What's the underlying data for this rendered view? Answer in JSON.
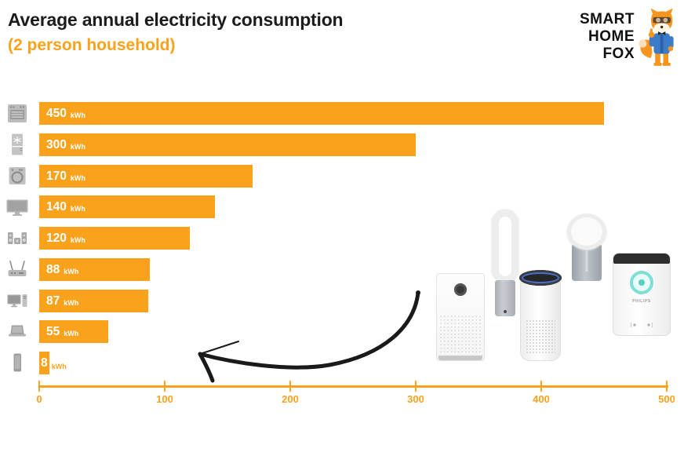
{
  "header": {
    "title": "Average annual electricity consumption",
    "subtitle": "(2 person household)"
  },
  "logo": {
    "line1": "SMART",
    "line2": "HOME",
    "line3": "FOX"
  },
  "colors": {
    "accent_orange": "#FAA21C",
    "title_black": "#1c1c1c",
    "bar_label_white": "#FFFFFF",
    "appliance_icon_gray": "#A8A8A8"
  },
  "chart_data": {
    "type": "bar",
    "orientation": "horizontal",
    "title": "Average annual electricity consumption (2 person household)",
    "unit": "kWh",
    "categories": [
      "oven",
      "fridge-freezer",
      "washing-machine",
      "television",
      "stereo-system",
      "wifi-router",
      "desktop-computer",
      "laptop",
      "smartphone"
    ],
    "values": [
      450,
      300,
      170,
      140,
      120,
      88,
      87,
      55,
      8
    ],
    "value_labels": [
      "450",
      "300",
      "170",
      "140",
      "120",
      "88",
      "87",
      "55",
      "8"
    ],
    "xlim": [
      0,
      500
    ],
    "x_ticks": [
      "0",
      "100",
      "200",
      "300",
      "400",
      "500"
    ],
    "grid": false,
    "legend": false,
    "bar_color": "#FAA21C",
    "value_label_position": "inside-left"
  },
  "products": {
    "items": [
      {
        "name": "xiaomi-box-air-purifier"
      },
      {
        "name": "dyson-tower-air-purifier"
      },
      {
        "name": "levoit-cylinder-air-purifier"
      },
      {
        "name": "dyson-pure-cool-me-air-purifier"
      },
      {
        "name": "philips-air-purifier",
        "brand_text": "PHILIPS"
      }
    ]
  }
}
